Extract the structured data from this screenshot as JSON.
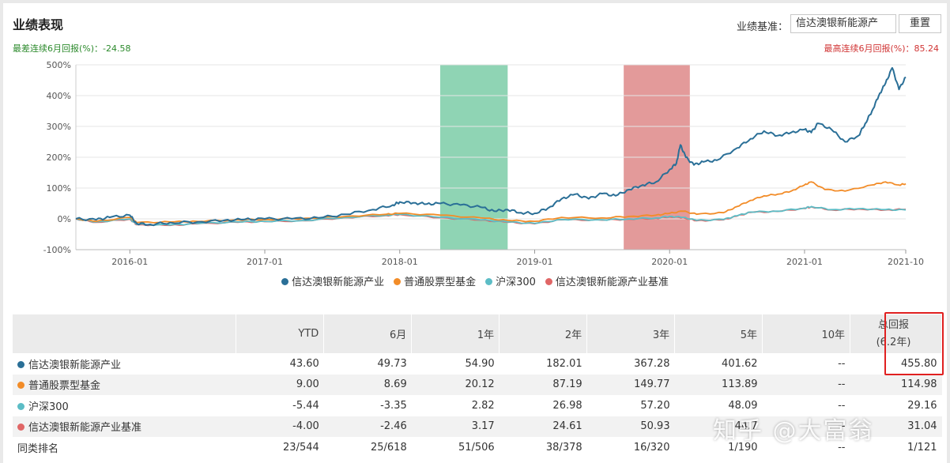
{
  "header": {
    "title": "业绩表现",
    "benchmark_label": "业绩基准：",
    "benchmark_value": "信达澳银新能源产",
    "reset_label": "重置"
  },
  "stats": {
    "worst": "最差连续6月回报(%)：-24.58",
    "best": "最高连续6月回报(%)：85.24"
  },
  "chart_data": {
    "type": "line",
    "title": "",
    "xlabel": "",
    "ylabel": "",
    "ylim": [
      -100,
      500
    ],
    "y_ticks": [
      "500%",
      "400%",
      "300%",
      "200%",
      "100%",
      "0%",
      "-100%"
    ],
    "y_tick_values": [
      500,
      400,
      300,
      200,
      100,
      0,
      -100
    ],
    "x_tick_labels": [
      "2016-01",
      "2017-01",
      "2018-01",
      "2019-01",
      "2020-01",
      "2021-01",
      "2021-10"
    ],
    "x_tick_values": [
      2016.0,
      2017.0,
      2018.0,
      2019.0,
      2020.0,
      2021.0,
      2021.75
    ],
    "xlim": [
      2015.6,
      2021.75
    ],
    "grid": true,
    "legend_position": "bottom",
    "shaded_regions": [
      {
        "label": "最差连续6月",
        "start": 2018.3,
        "end": 2018.8,
        "color": "#8fd4b4"
      },
      {
        "label": "最高连续6月",
        "start": 2019.66,
        "end": 2020.15,
        "color": "#e39a9a"
      }
    ],
    "series": [
      {
        "name": "信达澳银新能源产业",
        "color": "#2a6f97",
        "points": [
          [
            2015.6,
            0
          ],
          [
            2015.75,
            -3
          ],
          [
            2015.85,
            5
          ],
          [
            2016.0,
            12
          ],
          [
            2016.05,
            -15
          ],
          [
            2016.15,
            -18
          ],
          [
            2016.3,
            -12
          ],
          [
            2016.5,
            -10
          ],
          [
            2016.7,
            -5
          ],
          [
            2016.85,
            -2
          ],
          [
            2017.0,
            0
          ],
          [
            2017.2,
            0
          ],
          [
            2017.4,
            3
          ],
          [
            2017.6,
            15
          ],
          [
            2017.8,
            30
          ],
          [
            2017.95,
            45
          ],
          [
            2018.0,
            55
          ],
          [
            2018.1,
            52
          ],
          [
            2018.2,
            48
          ],
          [
            2018.3,
            50
          ],
          [
            2018.45,
            45
          ],
          [
            2018.6,
            38
          ],
          [
            2018.7,
            25
          ],
          [
            2018.8,
            30
          ],
          [
            2018.9,
            20
          ],
          [
            2019.0,
            18
          ],
          [
            2019.1,
            35
          ],
          [
            2019.2,
            65
          ],
          [
            2019.3,
            80
          ],
          [
            2019.4,
            65
          ],
          [
            2019.5,
            82
          ],
          [
            2019.6,
            75
          ],
          [
            2019.7,
            95
          ],
          [
            2019.8,
            110
          ],
          [
            2019.9,
            120
          ],
          [
            2020.0,
            160
          ],
          [
            2020.05,
            180
          ],
          [
            2020.08,
            240
          ],
          [
            2020.12,
            200
          ],
          [
            2020.18,
            175
          ],
          [
            2020.25,
            185
          ],
          [
            2020.35,
            190
          ],
          [
            2020.5,
            230
          ],
          [
            2020.6,
            260
          ],
          [
            2020.7,
            285
          ],
          [
            2020.8,
            270
          ],
          [
            2020.9,
            280
          ],
          [
            2021.0,
            290
          ],
          [
            2021.05,
            280
          ],
          [
            2021.1,
            310
          ],
          [
            2021.2,
            290
          ],
          [
            2021.3,
            250
          ],
          [
            2021.4,
            270
          ],
          [
            2021.45,
            310
          ],
          [
            2021.5,
            350
          ],
          [
            2021.55,
            400
          ],
          [
            2021.6,
            440
          ],
          [
            2021.65,
            490
          ],
          [
            2021.7,
            420
          ],
          [
            2021.75,
            460
          ]
        ]
      },
      {
        "name": "普通股票型基金",
        "color": "#f28c28",
        "points": [
          [
            2015.6,
            0
          ],
          [
            2015.75,
            -8
          ],
          [
            2016.0,
            5
          ],
          [
            2016.05,
            -12
          ],
          [
            2016.3,
            -10
          ],
          [
            2016.5,
            -8
          ],
          [
            2016.8,
            -3
          ],
          [
            2017.0,
            -2
          ],
          [
            2017.3,
            2
          ],
          [
            2017.6,
            8
          ],
          [
            2017.9,
            15
          ],
          [
            2018.0,
            18
          ],
          [
            2018.3,
            12
          ],
          [
            2018.6,
            3
          ],
          [
            2018.8,
            -5
          ],
          [
            2019.0,
            -8
          ],
          [
            2019.2,
            5
          ],
          [
            2019.5,
            3
          ],
          [
            2019.7,
            8
          ],
          [
            2019.9,
            12
          ],
          [
            2020.0,
            18
          ],
          [
            2020.1,
            25
          ],
          [
            2020.2,
            15
          ],
          [
            2020.4,
            20
          ],
          [
            2020.5,
            40
          ],
          [
            2020.6,
            60
          ],
          [
            2020.7,
            75
          ],
          [
            2020.8,
            80
          ],
          [
            2020.9,
            90
          ],
          [
            2021.0,
            110
          ],
          [
            2021.05,
            120
          ],
          [
            2021.15,
            95
          ],
          [
            2021.3,
            90
          ],
          [
            2021.5,
            110
          ],
          [
            2021.6,
            120
          ],
          [
            2021.7,
            110
          ],
          [
            2021.75,
            114
          ]
        ]
      },
      {
        "name": "沪深300",
        "color": "#5cbdc6",
        "points": [
          [
            2015.6,
            0
          ],
          [
            2015.75,
            -10
          ],
          [
            2016.0,
            0
          ],
          [
            2016.05,
            -18
          ],
          [
            2016.3,
            -20
          ],
          [
            2016.5,
            -15
          ],
          [
            2016.8,
            -10
          ],
          [
            2017.0,
            -8
          ],
          [
            2017.3,
            -5
          ],
          [
            2017.6,
            5
          ],
          [
            2017.9,
            12
          ],
          [
            2018.0,
            15
          ],
          [
            2018.3,
            5
          ],
          [
            2018.6,
            -3
          ],
          [
            2018.8,
            -10
          ],
          [
            2019.0,
            -15
          ],
          [
            2019.2,
            -2
          ],
          [
            2019.5,
            -3
          ],
          [
            2019.7,
            0
          ],
          [
            2019.9,
            3
          ],
          [
            2020.0,
            8
          ],
          [
            2020.1,
            5
          ],
          [
            2020.2,
            -5
          ],
          [
            2020.4,
            -2
          ],
          [
            2020.5,
            10
          ],
          [
            2020.6,
            22
          ],
          [
            2020.8,
            25
          ],
          [
            2021.0,
            35
          ],
          [
            2021.05,
            40
          ],
          [
            2021.2,
            30
          ],
          [
            2021.4,
            33
          ],
          [
            2021.6,
            30
          ],
          [
            2021.75,
            29
          ]
        ]
      },
      {
        "name": "信达澳银新能源产业基准",
        "color": "#e06666",
        "points": [
          [
            2015.6,
            0
          ],
          [
            2015.75,
            -11
          ],
          [
            2016.0,
            -1
          ],
          [
            2016.05,
            -19
          ],
          [
            2016.3,
            -21
          ],
          [
            2016.5,
            -16
          ],
          [
            2016.8,
            -11
          ],
          [
            2017.0,
            -9
          ],
          [
            2017.3,
            -6
          ],
          [
            2017.6,
            4
          ],
          [
            2017.9,
            11
          ],
          [
            2018.0,
            14
          ],
          [
            2018.3,
            4
          ],
          [
            2018.6,
            -4
          ],
          [
            2018.8,
            -11
          ],
          [
            2019.0,
            -16
          ],
          [
            2019.2,
            -3
          ],
          [
            2019.5,
            -4
          ],
          [
            2019.7,
            -1
          ],
          [
            2019.9,
            2
          ],
          [
            2020.0,
            7
          ],
          [
            2020.1,
            4
          ],
          [
            2020.2,
            -6
          ],
          [
            2020.4,
            -3
          ],
          [
            2020.5,
            9
          ],
          [
            2020.6,
            21
          ],
          [
            2020.8,
            24
          ],
          [
            2021.0,
            34
          ],
          [
            2021.05,
            39
          ],
          [
            2021.2,
            29
          ],
          [
            2021.4,
            32
          ],
          [
            2021.6,
            29
          ],
          [
            2021.75,
            31
          ]
        ]
      }
    ]
  },
  "table": {
    "headers": [
      "",
      "YTD",
      "6月",
      "1年",
      "2年",
      "3年",
      "5年",
      "10年",
      "总回报"
    ],
    "total_sub": "(6.2年)",
    "rows": [
      {
        "name": "信达澳银新能源产业",
        "color": "#2a6f97",
        "values": [
          "43.60",
          "49.73",
          "54.90",
          "182.01",
          "367.28",
          "401.62",
          "--",
          "455.80"
        ]
      },
      {
        "name": "普通股票型基金",
        "color": "#f28c28",
        "values": [
          "9.00",
          "8.69",
          "20.12",
          "87.19",
          "149.77",
          "113.89",
          "--",
          "114.98"
        ]
      },
      {
        "name": "沪深300",
        "color": "#5cbdc6",
        "values": [
          "-5.44",
          "-3.35",
          "2.82",
          "26.98",
          "57.20",
          "48.09",
          "--",
          "29.16"
        ]
      },
      {
        "name": "信达澳银新能源产业基准",
        "color": "#e06666",
        "values": [
          "-4.00",
          "-2.46",
          "3.17",
          "24.61",
          "50.93",
          "44.7",
          "--",
          "31.04"
        ]
      },
      {
        "name": "同类排名",
        "color": "",
        "values": [
          "23/544",
          "25/618",
          "51/506",
          "38/378",
          "16/320",
          "1/190",
          "--",
          "1/121"
        ]
      }
    ]
  },
  "watermark": "知乎 @大富翁"
}
